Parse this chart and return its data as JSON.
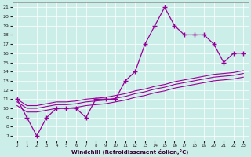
{
  "xlabel": "Windchill (Refroidissement éolien,°C)",
  "bg_color": "#cceee8",
  "line_color": "#990099",
  "x_ticks": [
    0,
    1,
    2,
    3,
    4,
    5,
    6,
    7,
    8,
    9,
    10,
    11,
    12,
    13,
    14,
    15,
    16,
    17,
    18,
    19,
    20,
    21,
    22,
    23
  ],
  "y_ticks": [
    7,
    8,
    9,
    10,
    11,
    12,
    13,
    14,
    15,
    16,
    17,
    18,
    19,
    20,
    21
  ],
  "xlim": [
    -0.5,
    23.5
  ],
  "ylim": [
    6.5,
    21.5
  ],
  "main_y": [
    11,
    9,
    7,
    9,
    10,
    10,
    10,
    9,
    11,
    11,
    11,
    13,
    14,
    17,
    19,
    21,
    19,
    18,
    18,
    18,
    17,
    15,
    16,
    16
  ],
  "upper_y": [
    11.0,
    10.3,
    10.3,
    10.5,
    10.7,
    10.7,
    10.8,
    11.0,
    11.1,
    11.2,
    11.4,
    11.6,
    11.9,
    12.1,
    12.4,
    12.6,
    12.9,
    13.1,
    13.3,
    13.5,
    13.7,
    13.8,
    13.9,
    14.1
  ],
  "mid_y": [
    10.7,
    10.0,
    10.0,
    10.2,
    10.4,
    10.4,
    10.5,
    10.7,
    10.8,
    10.9,
    11.1,
    11.3,
    11.6,
    11.8,
    12.1,
    12.3,
    12.6,
    12.8,
    13.0,
    13.2,
    13.4,
    13.5,
    13.6,
    13.8
  ],
  "lower_y": [
    10.3,
    9.6,
    9.6,
    9.8,
    10.0,
    10.0,
    10.1,
    10.3,
    10.4,
    10.5,
    10.7,
    10.9,
    11.2,
    11.4,
    11.7,
    11.9,
    12.2,
    12.4,
    12.6,
    12.8,
    13.0,
    13.1,
    13.2,
    13.4
  ]
}
